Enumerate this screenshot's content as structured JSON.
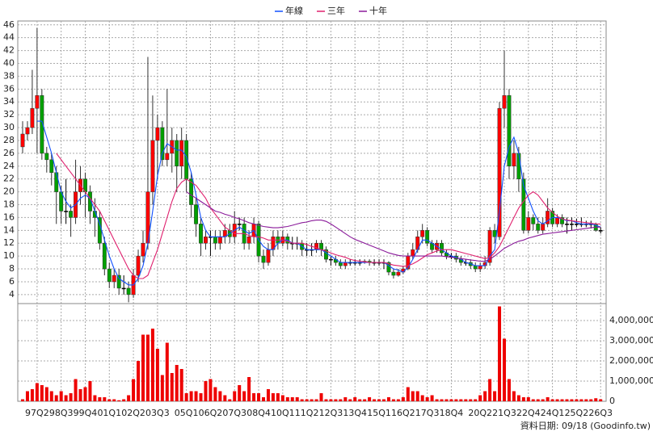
{
  "chart_data": {
    "type": "candlestick",
    "footnote": "資料日期: 09/18 (Goodinfo.tw)",
    "grid": true,
    "up_color": "#ff0000",
    "down_color": "#00a000",
    "flat_color": "#000000",
    "ylim": [
      2.6,
      46.6
    ],
    "yticks": [
      4,
      6,
      8,
      10,
      12,
      14,
      16,
      18,
      20,
      22,
      24,
      26,
      28,
      30,
      32,
      34,
      36,
      38,
      40,
      42,
      44,
      46
    ],
    "categories": [
      null,
      null,
      null,
      "97Q2",
      null,
      null,
      null,
      null,
      "98Q3",
      null,
      null,
      null,
      null,
      "99Q4",
      null,
      null,
      null,
      null,
      "01Q1",
      null,
      null,
      null,
      null,
      "02Q2",
      null,
      null,
      null,
      null,
      "03Q3",
      null,
      null,
      null,
      null,
      null,
      "05Q1",
      null,
      null,
      null,
      null,
      "06Q2",
      null,
      null,
      null,
      null,
      "07Q3",
      null,
      null,
      null,
      null,
      "08Q4",
      null,
      null,
      null,
      null,
      "10Q1",
      null,
      null,
      null,
      null,
      "11Q2",
      null,
      null,
      null,
      null,
      "12Q3",
      null,
      null,
      null,
      null,
      "13Q4",
      null,
      null,
      null,
      null,
      "15Q1",
      null,
      null,
      null,
      null,
      "16Q2",
      null,
      null,
      null,
      null,
      "17Q3",
      null,
      null,
      null,
      null,
      "18Q4",
      null,
      null,
      null,
      null,
      null,
      "20Q2",
      null,
      null,
      null,
      null,
      "21Q3",
      null,
      null,
      null,
      null,
      "22Q4",
      null,
      null,
      null,
      null,
      "24Q1",
      null,
      null,
      null,
      null,
      "25Q2",
      null,
      null,
      null,
      null,
      "26Q3"
    ],
    "ohlc": [
      [
        27,
        31,
        26,
        29
      ],
      [
        29,
        31,
        28,
        30
      ],
      [
        30,
        39,
        29,
        33
      ],
      [
        33,
        45.5,
        26,
        35
      ],
      [
        35,
        36,
        25,
        26
      ],
      [
        26,
        27,
        23,
        25
      ],
      [
        25,
        26,
        21,
        23
      ],
      [
        23,
        24,
        15,
        20
      ],
      [
        20,
        21,
        15,
        17
      ],
      [
        17,
        22,
        15,
        17
      ],
      [
        17,
        18,
        13,
        16
      ],
      [
        16,
        25,
        15,
        20
      ],
      [
        20,
        24,
        18,
        22
      ],
      [
        22,
        23,
        16,
        20
      ],
      [
        20,
        21,
        15,
        17
      ],
      [
        17,
        19,
        13,
        16
      ],
      [
        16,
        17,
        11,
        12
      ],
      [
        12,
        13,
        7,
        8
      ],
      [
        8,
        9,
        5,
        6
      ],
      [
        6,
        8,
        5,
        7
      ],
      [
        7,
        8,
        4,
        5
      ],
      [
        5,
        7,
        4,
        5
      ],
      [
        5,
        6,
        2.8,
        4
      ],
      [
        4,
        8,
        3.5,
        7
      ],
      [
        7,
        11,
        6,
        10
      ],
      [
        10,
        14,
        9,
        12
      ],
      [
        12,
        41,
        11,
        20
      ],
      [
        20,
        35,
        18,
        28
      ],
      [
        28,
        32,
        22,
        30
      ],
      [
        30,
        31,
        24,
        25
      ],
      [
        25,
        36,
        24,
        26
      ],
      [
        26,
        30,
        23,
        28
      ],
      [
        28,
        29,
        20,
        24
      ],
      [
        24,
        30,
        22,
        28
      ],
      [
        28,
        29,
        20,
        22
      ],
      [
        22,
        23,
        16,
        18
      ],
      [
        18,
        19,
        13,
        15
      ],
      [
        15,
        16,
        10,
        12
      ],
      [
        12,
        14,
        11,
        13
      ],
      [
        13,
        14,
        10,
        13
      ],
      [
        13,
        14,
        11,
        12
      ],
      [
        12,
        14,
        11,
        13
      ],
      [
        13,
        15,
        12,
        14
      ],
      [
        14,
        15,
        12,
        13
      ],
      [
        13,
        17,
        12,
        15
      ],
      [
        15,
        16,
        14,
        15
      ],
      [
        15,
        16,
        11,
        12
      ],
      [
        12,
        14,
        11,
        13
      ],
      [
        13,
        16,
        12,
        15
      ],
      [
        15,
        15.5,
        9,
        10
      ],
      [
        10,
        11,
        8,
        9
      ],
      [
        9,
        12,
        8.5,
        11
      ],
      [
        11,
        14,
        10,
        13
      ],
      [
        13,
        14,
        11,
        12
      ],
      [
        12,
        14,
        11.5,
        13
      ],
      [
        13,
        13.5,
        11,
        12
      ],
      [
        12,
        13,
        11,
        12
      ],
      [
        12,
        13,
        11,
        12
      ],
      [
        12,
        12.5,
        10,
        11
      ],
      [
        11,
        12,
        10,
        11
      ],
      [
        11,
        12,
        10,
        11
      ],
      [
        11,
        12.5,
        10.5,
        12
      ],
      [
        12,
        12.5,
        10,
        11
      ],
      [
        11,
        11.5,
        9,
        9.5
      ],
      [
        9.5,
        10,
        8.5,
        9.5
      ],
      [
        9.5,
        10,
        8.5,
        9
      ],
      [
        9,
        9.5,
        8,
        8.5
      ],
      [
        8.5,
        9.5,
        8,
        9
      ],
      [
        9,
        9.5,
        8.5,
        9
      ],
      [
        9,
        9.5,
        8.5,
        9
      ],
      [
        9,
        9.5,
        8.5,
        9
      ],
      [
        9,
        9.5,
        8.8,
        9.2
      ],
      [
        9.2,
        9.5,
        8.5,
        9
      ],
      [
        9,
        9.5,
        8.5,
        9
      ],
      [
        9,
        9.5,
        8.5,
        9
      ],
      [
        9,
        9.5,
        8,
        9
      ],
      [
        9,
        9.2,
        7,
        7.5
      ],
      [
        7.5,
        8,
        6.5,
        7
      ],
      [
        7,
        8,
        6.8,
        7.5
      ],
      [
        7.5,
        8.5,
        7.2,
        8
      ],
      [
        8,
        10.5,
        7.8,
        10
      ],
      [
        10,
        12,
        9.5,
        11
      ],
      [
        11,
        14,
        10.5,
        13
      ],
      [
        13,
        15,
        12,
        14
      ],
      [
        14,
        14.5,
        11.5,
        12
      ],
      [
        12,
        12.5,
        10.5,
        11
      ],
      [
        11,
        12.5,
        10.5,
        12
      ],
      [
        12,
        12.5,
        10,
        10.5
      ],
      [
        10.5,
        11,
        9.5,
        10
      ],
      [
        10,
        10.5,
        9.5,
        10
      ],
      [
        10,
        10.5,
        9,
        9.5
      ],
      [
        9.5,
        10,
        8.5,
        9
      ],
      [
        9,
        9.5,
        8.5,
        9
      ],
      [
        9,
        9.5,
        8,
        8.5
      ],
      [
        8.5,
        9,
        7.5,
        8
      ],
      [
        8,
        9,
        7.5,
        8.5
      ],
      [
        8.5,
        10,
        8,
        9
      ],
      [
        9,
        14.5,
        8.5,
        14
      ],
      [
        14,
        15,
        12,
        13
      ],
      [
        13,
        34,
        12.5,
        33
      ],
      [
        33,
        42,
        30,
        35
      ],
      [
        35,
        36,
        22,
        24
      ],
      [
        24,
        28,
        22,
        26
      ],
      [
        26,
        27,
        20,
        22
      ],
      [
        22,
        23,
        13.5,
        14
      ],
      [
        14,
        17,
        13.5,
        16
      ],
      [
        16,
        16.5,
        14,
        15
      ],
      [
        15,
        16,
        13.5,
        14
      ],
      [
        14,
        16,
        13.5,
        15
      ],
      [
        15,
        19,
        14.5,
        17
      ],
      [
        17,
        17.5,
        14.5,
        15
      ],
      [
        15,
        16.5,
        14.5,
        16
      ],
      [
        16,
        16.5,
        14.5,
        15
      ],
      [
        15,
        16,
        13.5,
        15
      ],
      [
        15,
        16,
        14,
        15
      ],
      [
        15,
        15.8,
        14.5,
        15
      ],
      [
        15,
        16,
        14.5,
        15
      ],
      [
        15,
        15.5,
        14.5,
        15
      ],
      [
        15,
        15.5,
        14.3,
        15
      ],
      [
        15,
        15.2,
        13.8,
        14
      ],
      [
        14,
        14.5,
        13.5,
        14
      ]
    ],
    "series": [
      {
        "name": "年線",
        "color": "#1050ff",
        "values": [
          null,
          null,
          null,
          31,
          31,
          28.5,
          26,
          23,
          20,
          18.5,
          17.5,
          18,
          19,
          19.5,
          19,
          17,
          15,
          12.5,
          10,
          8,
          6.5,
          6,
          5.5,
          5.5,
          6.5,
          8.5,
          12,
          17,
          22.5,
          26,
          27.5,
          27,
          26.5,
          26.5,
          25.5,
          23,
          19.5,
          16,
          14,
          13,
          13,
          13,
          13,
          13.5,
          14,
          14.5,
          14,
          13.5,
          14,
          12.5,
          11.5,
          11,
          11,
          12,
          12.5,
          12.5,
          12,
          12,
          11.5,
          11,
          11,
          11,
          11,
          10.5,
          10,
          9.5,
          9,
          9,
          9,
          9,
          9,
          9,
          9,
          9,
          9,
          9,
          8.5,
          8,
          7.8,
          7.5,
          8.2,
          9.5,
          11,
          12.5,
          12.5,
          12,
          11.5,
          11,
          10.5,
          10,
          9.8,
          9.5,
          9,
          8.8,
          8.5,
          8.5,
          8.5,
          10,
          11,
          17,
          24,
          27,
          28.5,
          26,
          21,
          19,
          17,
          15.5,
          15,
          15.5,
          16,
          16,
          15.8,
          15.5,
          15.5,
          15.2,
          15,
          15,
          15,
          14.8,
          14.5
        ]
      },
      {
        "name": "三年",
        "color": "#e0206e",
        "values": [
          null,
          null,
          null,
          null,
          null,
          null,
          null,
          26,
          25,
          24,
          23,
          22,
          21,
          20,
          19,
          18,
          17,
          15.5,
          14,
          12.5,
          11,
          9.5,
          8,
          7,
          6.5,
          6.5,
          7,
          9,
          11,
          13.5,
          16,
          18.5,
          20.5,
          21.5,
          22,
          21.5,
          21,
          20,
          19,
          17.5,
          16.5,
          15.5,
          14.5,
          14,
          13.5,
          13.5,
          13.5,
          13.2,
          13,
          13,
          12.8,
          12.5,
          12.5,
          12.5,
          12.5,
          12.3,
          12,
          12,
          12,
          11.8,
          11.5,
          11.3,
          11,
          10.8,
          10.5,
          10.2,
          10,
          9.8,
          9.5,
          9.3,
          9.2,
          9.1,
          9,
          9,
          9,
          9,
          8.8,
          8.6,
          8.5,
          8.4,
          8.5,
          8.8,
          9.2,
          9.7,
          10.2,
          10.5,
          10.8,
          11,
          11,
          11,
          10.8,
          10.6,
          10.4,
          10.2,
          10,
          9.8,
          9.6,
          9.8,
          10.5,
          11.5,
          13,
          14.5,
          16,
          17.5,
          18.5,
          19.5,
          20,
          19.5,
          18.5,
          17.5,
          16.8,
          16.2,
          15.8,
          15.6,
          15.5,
          15.4,
          15.3,
          15.2,
          15.1,
          15,
          15
        ]
      },
      {
        "name": "十年",
        "color": "#8a1a9a",
        "values": [
          null,
          null,
          null,
          null,
          null,
          null,
          null,
          null,
          null,
          null,
          null,
          null,
          null,
          null,
          null,
          null,
          null,
          null,
          null,
          null,
          null,
          null,
          null,
          null,
          null,
          null,
          null,
          null,
          null,
          null,
          null,
          null,
          null,
          null,
          20,
          19.5,
          19,
          18.5,
          18,
          17.5,
          17,
          16.8,
          16.5,
          16.3,
          16,
          15.8,
          15.5,
          15.2,
          15,
          14.8,
          14.6,
          14.5,
          14.4,
          14.4,
          14.5,
          14.6,
          14.8,
          15,
          15.2,
          15.3,
          15.5,
          15.6,
          15.6,
          15.4,
          15,
          14.5,
          14,
          13.5,
          13,
          12.6,
          12.3,
          12,
          11.7,
          11.4,
          11.1,
          10.8,
          10.5,
          10.3,
          10.1,
          10,
          10,
          10,
          10,
          10,
          10,
          10,
          10,
          10,
          9.9,
          9.8,
          9.7,
          9.6,
          9.5,
          9.4,
          9.3,
          9.2,
          9.2,
          9.5,
          10,
          10.6,
          11.2,
          11.6,
          12,
          12.3,
          12.5,
          12.8,
          13,
          13.2,
          13.4,
          13.5,
          13.6,
          13.7,
          13.8,
          13.9,
          14,
          14.1,
          14.2,
          14.3,
          14.4,
          14.5,
          14.5
        ]
      }
    ],
    "volume": {
      "color": "#ee0000",
      "ylim": [
        0,
        4840000
      ],
      "yticks": [
        0,
        {
          "value": 1000000,
          "label": "1,000,000"
        },
        {
          "value": 2000000,
          "label": "2,000,000"
        },
        {
          "value": 3000000,
          "label": "3,000,000"
        },
        {
          "value": 4000000,
          "label": "4,000,000"
        }
      ],
      "values": [
        100000,
        500000,
        600000,
        900000,
        800000,
        700000,
        500000,
        300000,
        500000,
        300000,
        400000,
        1100000,
        600000,
        700000,
        1000000,
        300000,
        200000,
        200000,
        100000,
        100000,
        50000,
        100000,
        300000,
        1100000,
        2000000,
        3300000,
        3300000,
        3600000,
        2600000,
        1300000,
        2900000,
        1400000,
        1800000,
        1600000,
        400000,
        500000,
        500000,
        400000,
        1000000,
        1100000,
        700000,
        500000,
        300000,
        100000,
        500000,
        800000,
        500000,
        1200000,
        400000,
        400000,
        200000,
        600000,
        400000,
        400000,
        300000,
        200000,
        200000,
        200000,
        100000,
        100000,
        100000,
        100000,
        400000,
        100000,
        100000,
        100000,
        100000,
        200000,
        100000,
        200000,
        100000,
        100000,
        200000,
        100000,
        100000,
        100000,
        200000,
        100000,
        100000,
        200000,
        700000,
        500000,
        500000,
        300000,
        200000,
        300000,
        100000,
        100000,
        100000,
        100000,
        100000,
        100000,
        100000,
        100000,
        100000,
        300000,
        500000,
        1100000,
        500000,
        4700000,
        3100000,
        1100000,
        500000,
        300000,
        200000,
        200000,
        100000,
        100000,
        100000,
        200000,
        100000,
        100000,
        100000,
        100000,
        100000,
        100000,
        100000,
        100000,
        100000,
        150000,
        100000
      ]
    }
  }
}
